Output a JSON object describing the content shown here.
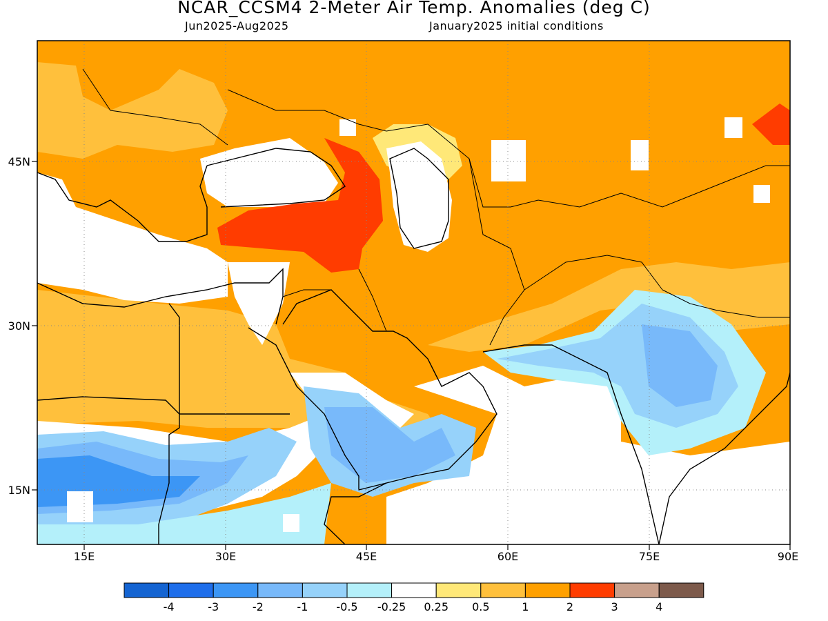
{
  "title": "NCAR_CCSM4 2-Meter Air Temp. Anomalies (deg C)",
  "subtitle_left": "Jun2025-Aug2025",
  "subtitle_right": "January2025 initial conditions",
  "map": {
    "region": "Middle East and South Asia",
    "lon_range": [
      10,
      90
    ],
    "lat_range": [
      10,
      55
    ],
    "lon_ticks": [
      "15E",
      "30E",
      "45E",
      "60E",
      "75E",
      "90E"
    ],
    "lat_ticks": [
      "45N",
      "30N",
      "15N"
    ],
    "gridlines": "dotted"
  },
  "colorbar": {
    "labels": [
      "-4",
      "-3",
      "-2",
      "-1",
      "-0.5",
      "-0.25",
      "0.25",
      "0.5",
      "1",
      "2",
      "3",
      "4"
    ],
    "colors": [
      "#1464d2",
      "#1e6eeb",
      "#3c96f5",
      "#78b9fa",
      "#96d2fa",
      "#b4f0fa",
      "#ffffff",
      "#ffe878",
      "#ffc03c",
      "#ffa000",
      "#ff3c00",
      "#c8a08c",
      "#7d5a4b"
    ]
  }
}
